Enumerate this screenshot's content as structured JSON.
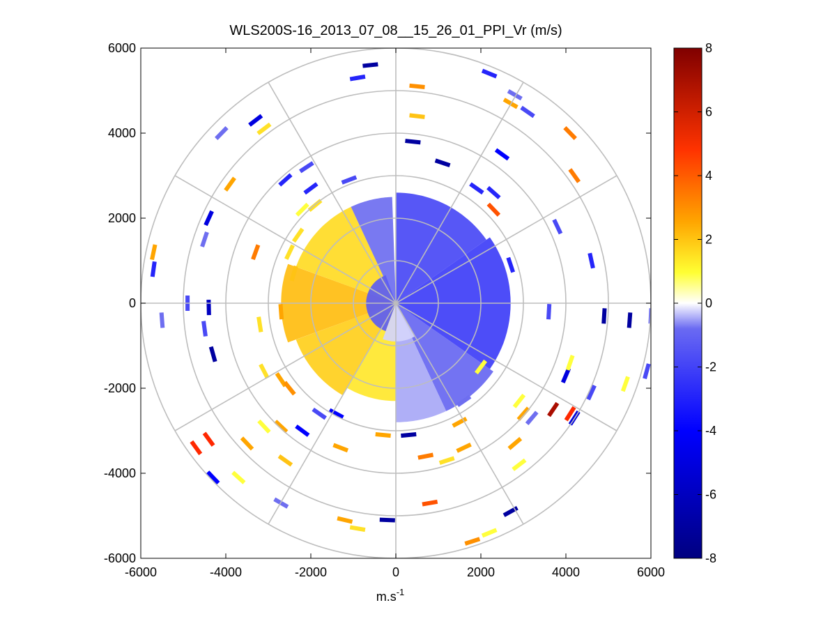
{
  "chart_data": {
    "type": "polar_ppi_scatter",
    "title": "WLS200S-16_2013_07_08__15_26_01_PPI_Vr (m/s)",
    "xlabel_base": "m.s",
    "xlabel_exp": "-1",
    "xlim": [
      -6000,
      6000
    ],
    "ylim": [
      -6000,
      6000
    ],
    "xticks": [
      -6000,
      -4000,
      -2000,
      0,
      2000,
      4000,
      6000
    ],
    "yticks": [
      -6000,
      -4000,
      -2000,
      0,
      2000,
      4000,
      6000
    ],
    "xtick_labels": [
      "-6000",
      "-4000",
      "-2000",
      "0",
      "2000",
      "4000",
      "6000"
    ],
    "ytick_labels": [
      "-6000",
      "-4000",
      "-2000",
      "0",
      "2000",
      "4000",
      "6000"
    ],
    "range_rings_m": [
      1000,
      2000,
      3000,
      4000,
      5000,
      6000
    ],
    "spoke_angles_deg": [
      0,
      30,
      60,
      90,
      120,
      150,
      180,
      210,
      240,
      270,
      300,
      330
    ],
    "colorbar": {
      "min": -8,
      "max": 8,
      "ticks": [
        -8,
        -6,
        -4,
        -2,
        0,
        2,
        4,
        6,
        8
      ],
      "tick_labels": [
        "-8",
        "-6",
        "-4",
        "-2",
        "0",
        "2",
        "4",
        "6",
        "8"
      ]
    },
    "sectors": [
      {
        "az_from": 0,
        "az_to": 55,
        "r_from": 0,
        "r_to": 2600,
        "v": -2.0
      },
      {
        "az_from": 55,
        "az_to": 125,
        "r_from": 0,
        "r_to": 2700,
        "v": -2.3
      },
      {
        "az_from": 125,
        "az_to": 155,
        "r_from": 0,
        "r_to": 2800,
        "v": -1.2
      },
      {
        "az_from": 155,
        "az_to": 180,
        "r_from": 0,
        "r_to": 2800,
        "v": -0.6
      },
      {
        "az_from": 180,
        "az_to": 210,
        "r_from": 0,
        "r_to": 2300,
        "v": 0.9
      },
      {
        "az_from": 210,
        "az_to": 250,
        "r_from": 0,
        "r_to": 2500,
        "v": 1.3
      },
      {
        "az_from": 250,
        "az_to": 290,
        "r_from": 0,
        "r_to": 2700,
        "v": 1.6
      },
      {
        "az_from": 290,
        "az_to": 335,
        "r_from": 0,
        "r_to": 2500,
        "v": 1.1
      },
      {
        "az_from": 335,
        "az_to": 358,
        "r_from": 0,
        "r_to": 2500,
        "v": -1.0
      },
      {
        "az_from": 200,
        "az_to": 340,
        "r_from": 0,
        "r_to": 700,
        "v": -1.5
      },
      {
        "az_from": 150,
        "az_to": 200,
        "r_from": 0,
        "r_to": 900,
        "v": -0.3
      }
    ],
    "cells": [
      {
        "x": -600,
        "y": 5600,
        "v": -7
      },
      {
        "x": -900,
        "y": 5300,
        "v": -3
      },
      {
        "x": 2200,
        "y": 5400,
        "v": -3
      },
      {
        "x": 2800,
        "y": 4900,
        "v": -1
      },
      {
        "x": 2700,
        "y": 4700,
        "v": 2
      },
      {
        "x": 3100,
        "y": 4500,
        "v": -2
      },
      {
        "x": 500,
        "y": 5100,
        "v": 2.5
      },
      {
        "x": 500,
        "y": 4400,
        "v": 1.5
      },
      {
        "x": 400,
        "y": 3800,
        "v": -7
      },
      {
        "x": 1100,
        "y": 3300,
        "v": -7
      },
      {
        "x": 2500,
        "y": 3500,
        "v": -4
      },
      {
        "x": 4100,
        "y": 4000,
        "v": 3
      },
      {
        "x": 4200,
        "y": 3000,
        "v": 3
      },
      {
        "x": 2300,
        "y": 2600,
        "v": -3
      },
      {
        "x": 1900,
        "y": 2700,
        "v": -3
      },
      {
        "x": 2300,
        "y": 2200,
        "v": 4
      },
      {
        "x": -3300,
        "y": 4300,
        "v": -5
      },
      {
        "x": -3100,
        "y": 4100,
        "v": 1
      },
      {
        "x": -4100,
        "y": 4000,
        "v": -1
      },
      {
        "x": -3900,
        "y": 2800,
        "v": 2
      },
      {
        "x": -2100,
        "y": 3200,
        "v": -2
      },
      {
        "x": -2600,
        "y": 2900,
        "v": -3
      },
      {
        "x": -2000,
        "y": 2700,
        "v": -3
      },
      {
        "x": -1100,
        "y": 2900,
        "v": -2
      },
      {
        "x": -4400,
        "y": 2000,
        "v": -5
      },
      {
        "x": -4500,
        "y": 1500,
        "v": -1
      },
      {
        "x": -5700,
        "y": 1200,
        "v": 2
      },
      {
        "x": -5700,
        "y": 800,
        "v": -3
      },
      {
        "x": -5500,
        "y": -400,
        "v": -1
      },
      {
        "x": -4900,
        "y": 0,
        "v": -2
      },
      {
        "x": -4400,
        "y": -100,
        "v": -6
      },
      {
        "x": -4500,
        "y": -600,
        "v": -2
      },
      {
        "x": -4300,
        "y": -1200,
        "v": -7
      },
      {
        "x": -3300,
        "y": 1200,
        "v": 3
      },
      {
        "x": -2300,
        "y": 1600,
        "v": 1
      },
      {
        "x": -2200,
        "y": 2200,
        "v": 0.5
      },
      {
        "x": -4700,
        "y": -3400,
        "v": 5
      },
      {
        "x": -4400,
        "y": -3200,
        "v": 5
      },
      {
        "x": -4300,
        "y": -4100,
        "v": -4
      },
      {
        "x": -3700,
        "y": -4100,
        "v": 0.5
      },
      {
        "x": -3500,
        "y": -3300,
        "v": 2
      },
      {
        "x": -3100,
        "y": -2900,
        "v": 0.5
      },
      {
        "x": -2700,
        "y": -2900,
        "v": 2
      },
      {
        "x": -2600,
        "y": -3700,
        "v": 1.5
      },
      {
        "x": -2700,
        "y": -4700,
        "v": -1
      },
      {
        "x": -2200,
        "y": -3000,
        "v": -4
      },
      {
        "x": -1800,
        "y": -2600,
        "v": -2
      },
      {
        "x": -1400,
        "y": -2600,
        "v": -4
      },
      {
        "x": -1300,
        "y": -3400,
        "v": 2
      },
      {
        "x": -1200,
        "y": -5100,
        "v": 2
      },
      {
        "x": -900,
        "y": -5300,
        "v": 1
      },
      {
        "x": -200,
        "y": -5100,
        "v": -7
      },
      {
        "x": -300,
        "y": -3100,
        "v": 2
      },
      {
        "x": 300,
        "y": -3100,
        "v": -7
      },
      {
        "x": 700,
        "y": -3600,
        "v": 3
      },
      {
        "x": 1200,
        "y": -3700,
        "v": 1
      },
      {
        "x": 800,
        "y": -4700,
        "v": 4
      },
      {
        "x": 1500,
        "y": -2800,
        "v": 2
      },
      {
        "x": 1600,
        "y": -3400,
        "v": 2
      },
      {
        "x": 1800,
        "y": -5600,
        "v": 2.5
      },
      {
        "x": 2200,
        "y": -5400,
        "v": 0.5
      },
      {
        "x": 2700,
        "y": -4900,
        "v": -7
      },
      {
        "x": 2900,
        "y": -3800,
        "v": 0.5
      },
      {
        "x": 2800,
        "y": -3300,
        "v": 2
      },
      {
        "x": 3000,
        "y": -2600,
        "v": 2
      },
      {
        "x": 3200,
        "y": -2700,
        "v": -1
      },
      {
        "x": 3700,
        "y": -2500,
        "v": 7
      },
      {
        "x": 4100,
        "y": -2600,
        "v": 5
      },
      {
        "x": 4200,
        "y": -2700,
        "v": -5
      },
      {
        "x": 4000,
        "y": -1700,
        "v": -5
      },
      {
        "x": 4100,
        "y": -1400,
        "v": 0.5
      },
      {
        "x": 4600,
        "y": -2100,
        "v": -2
      },
      {
        "x": 5400,
        "y": -1900,
        "v": 0.5
      },
      {
        "x": 5900,
        "y": -1600,
        "v": -2
      },
      {
        "x": 4900,
        "y": -300,
        "v": -7
      },
      {
        "x": 5500,
        "y": -400,
        "v": -7
      },
      {
        "x": 6000,
        "y": -300,
        "v": -1
      },
      {
        "x": 4600,
        "y": 1000,
        "v": -3
      },
      {
        "x": 3800,
        "y": 1800,
        "v": -2
      },
      {
        "x": 2700,
        "y": 900,
        "v": -3
      },
      {
        "x": 3600,
        "y": -200,
        "v": -2
      },
      {
        "x": 2000,
        "y": -1500,
        "v": 0.5
      },
      {
        "x": 1600,
        "y": -2300,
        "v": -1
      },
      {
        "x": 2900,
        "y": -2300,
        "v": 0.5
      },
      {
        "x": -3100,
        "y": -1600,
        "v": 1
      },
      {
        "x": -2700,
        "y": -1800,
        "v": 2
      },
      {
        "x": -2500,
        "y": -2000,
        "v": 2.5
      },
      {
        "x": -3200,
        "y": -500,
        "v": 1
      },
      {
        "x": -2700,
        "y": -200,
        "v": 2
      },
      {
        "x": -2400,
        "y": 700,
        "v": 1.5
      },
      {
        "x": -2500,
        "y": 1200,
        "v": 1
      },
      {
        "x": -1900,
        "y": 2300,
        "v": 1
      }
    ]
  }
}
